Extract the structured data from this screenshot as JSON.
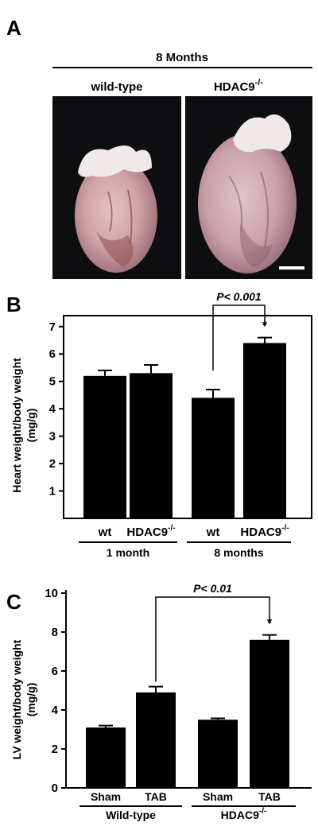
{
  "panels": {
    "a": {
      "letter": "A"
    },
    "b": {
      "letter": "B"
    },
    "c": {
      "letter": "C"
    }
  },
  "panelA": {
    "time_label": "8 Months",
    "left_title": "wild-type",
    "right_title_main": "HDAC9",
    "right_title_sup": "-/-"
  },
  "colors": {
    "bar": "#000000",
    "photo_background": "#0e0d10",
    "heart_pink": "#d7aeb0",
    "heart_shadow": "#8a5a66",
    "atria_white": "#efe9ea"
  },
  "chart_data": [
    {
      "type": "bar",
      "panel": "B",
      "ylabel": "Heart weight/body weight",
      "yunit": "(mg/g)",
      "ylim": [
        0,
        7.4
      ],
      "yticks": [
        1,
        2,
        3,
        4,
        5,
        6,
        7
      ],
      "categories": [
        "wt",
        "HDAC9-/-",
        "wt",
        "HDAC9-/-"
      ],
      "category_labels": [
        {
          "main": "wt",
          "sup": ""
        },
        {
          "main": "HDAC9",
          "sup": "-/-"
        },
        {
          "main": "wt",
          "sup": ""
        },
        {
          "main": "HDAC9",
          "sup": "-/-"
        }
      ],
      "values": [
        5.2,
        5.3,
        4.4,
        6.4
      ],
      "errors": [
        0.2,
        0.3,
        0.3,
        0.2
      ],
      "groups": [
        {
          "label": "1 month",
          "members": [
            0,
            1
          ]
        },
        {
          "label": "8 months",
          "members": [
            2,
            3
          ]
        }
      ],
      "significance": {
        "from": 2,
        "to": 3,
        "label": "P< 0.001",
        "star": "*"
      }
    },
    {
      "type": "bar",
      "panel": "C",
      "ylabel": "LV weight/body weight",
      "yunit": "(mg/g)",
      "ylim": [
        0,
        10
      ],
      "yticks": [
        0,
        2,
        4,
        6,
        8,
        10
      ],
      "categories": [
        "Sham",
        "TAB",
        "Sham",
        "TAB"
      ],
      "category_labels": [
        {
          "main": "Sham",
          "sup": ""
        },
        {
          "main": "TAB",
          "sup": ""
        },
        {
          "main": "Sham",
          "sup": ""
        },
        {
          "main": "TAB",
          "sup": ""
        }
      ],
      "values": [
        3.1,
        4.9,
        3.5,
        7.6
      ],
      "errors": [
        0.1,
        0.3,
        0.07,
        0.25
      ],
      "groups": [
        {
          "label": "Wild-type",
          "members": [
            0,
            1
          ],
          "sup": ""
        },
        {
          "label": "HDAC9",
          "members": [
            2,
            3
          ],
          "sup": "-/-"
        }
      ],
      "significance": {
        "from": 1,
        "to": 3,
        "label": "P< 0.01",
        "star": "*"
      }
    }
  ]
}
